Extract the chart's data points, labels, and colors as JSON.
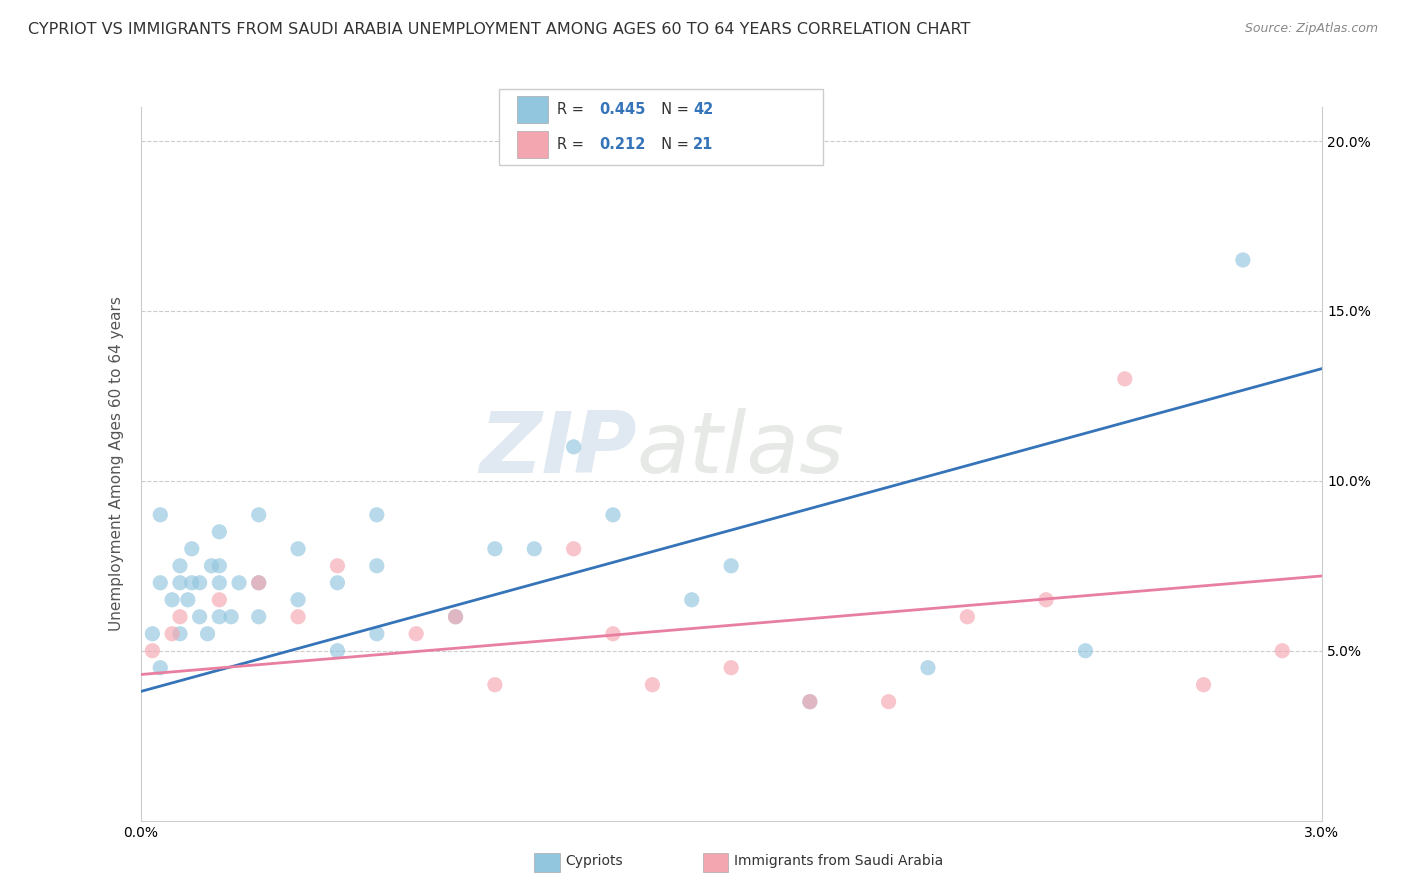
{
  "title": "CYPRIOT VS IMMIGRANTS FROM SAUDI ARABIA UNEMPLOYMENT AMONG AGES 60 TO 64 YEARS CORRELATION CHART",
  "source": "Source: ZipAtlas.com",
  "ylabel": "Unemployment Among Ages 60 to 64 years",
  "xlim": [
    0.0,
    0.03
  ],
  "ylim": [
    0.0,
    0.21
  ],
  "yticks": [
    0.0,
    0.05,
    0.1,
    0.15,
    0.2
  ],
  "yticklabels_left": [
    "",
    "",
    "",
    "",
    ""
  ],
  "yticklabels_right": [
    "",
    "5.0%",
    "10.0%",
    "15.0%",
    "20.0%"
  ],
  "xtick_left": "0.0%",
  "xtick_right": "3.0%",
  "blue_r": "0.445",
  "blue_n": "42",
  "pink_r": "0.212",
  "pink_n": "21",
  "blue_scatter_x": [
    0.0003,
    0.0005,
    0.0005,
    0.0005,
    0.0008,
    0.001,
    0.001,
    0.001,
    0.0012,
    0.0013,
    0.0013,
    0.0015,
    0.0015,
    0.0017,
    0.0018,
    0.002,
    0.002,
    0.002,
    0.002,
    0.0023,
    0.0025,
    0.003,
    0.003,
    0.003,
    0.004,
    0.004,
    0.005,
    0.005,
    0.006,
    0.006,
    0.006,
    0.008,
    0.009,
    0.01,
    0.011,
    0.012,
    0.014,
    0.015,
    0.017,
    0.02,
    0.024,
    0.028
  ],
  "blue_scatter_y": [
    0.055,
    0.045,
    0.07,
    0.09,
    0.065,
    0.055,
    0.07,
    0.075,
    0.065,
    0.07,
    0.08,
    0.06,
    0.07,
    0.055,
    0.075,
    0.06,
    0.07,
    0.075,
    0.085,
    0.06,
    0.07,
    0.06,
    0.07,
    0.09,
    0.065,
    0.08,
    0.05,
    0.07,
    0.055,
    0.075,
    0.09,
    0.06,
    0.08,
    0.08,
    0.11,
    0.09,
    0.065,
    0.075,
    0.035,
    0.045,
    0.05,
    0.165
  ],
  "pink_scatter_x": [
    0.0003,
    0.0008,
    0.001,
    0.002,
    0.003,
    0.004,
    0.005,
    0.007,
    0.008,
    0.009,
    0.011,
    0.012,
    0.013,
    0.015,
    0.017,
    0.019,
    0.021,
    0.023,
    0.025,
    0.027,
    0.029
  ],
  "pink_scatter_y": [
    0.05,
    0.055,
    0.06,
    0.065,
    0.07,
    0.06,
    0.075,
    0.055,
    0.06,
    0.04,
    0.08,
    0.055,
    0.04,
    0.045,
    0.035,
    0.035,
    0.06,
    0.065,
    0.13,
    0.04,
    0.05
  ],
  "blue_line_x": [
    0.0,
    0.03
  ],
  "blue_line_y": [
    0.038,
    0.133
  ],
  "pink_line_x": [
    0.0,
    0.03
  ],
  "pink_line_y": [
    0.043,
    0.072
  ],
  "blue_scatter_color": "#92c5de",
  "pink_scatter_color": "#f4a6b0",
  "blue_line_color": "#3574b8",
  "pink_line_color": "#e87fa0",
  "watermark_zip": "ZIP",
  "watermark_atlas": "atlas",
  "background_color": "#ffffff",
  "grid_color": "#cccccc",
  "title_fontsize": 11.5,
  "axis_label_fontsize": 11,
  "tick_fontsize": 10,
  "legend_value_color": "#3574b8"
}
